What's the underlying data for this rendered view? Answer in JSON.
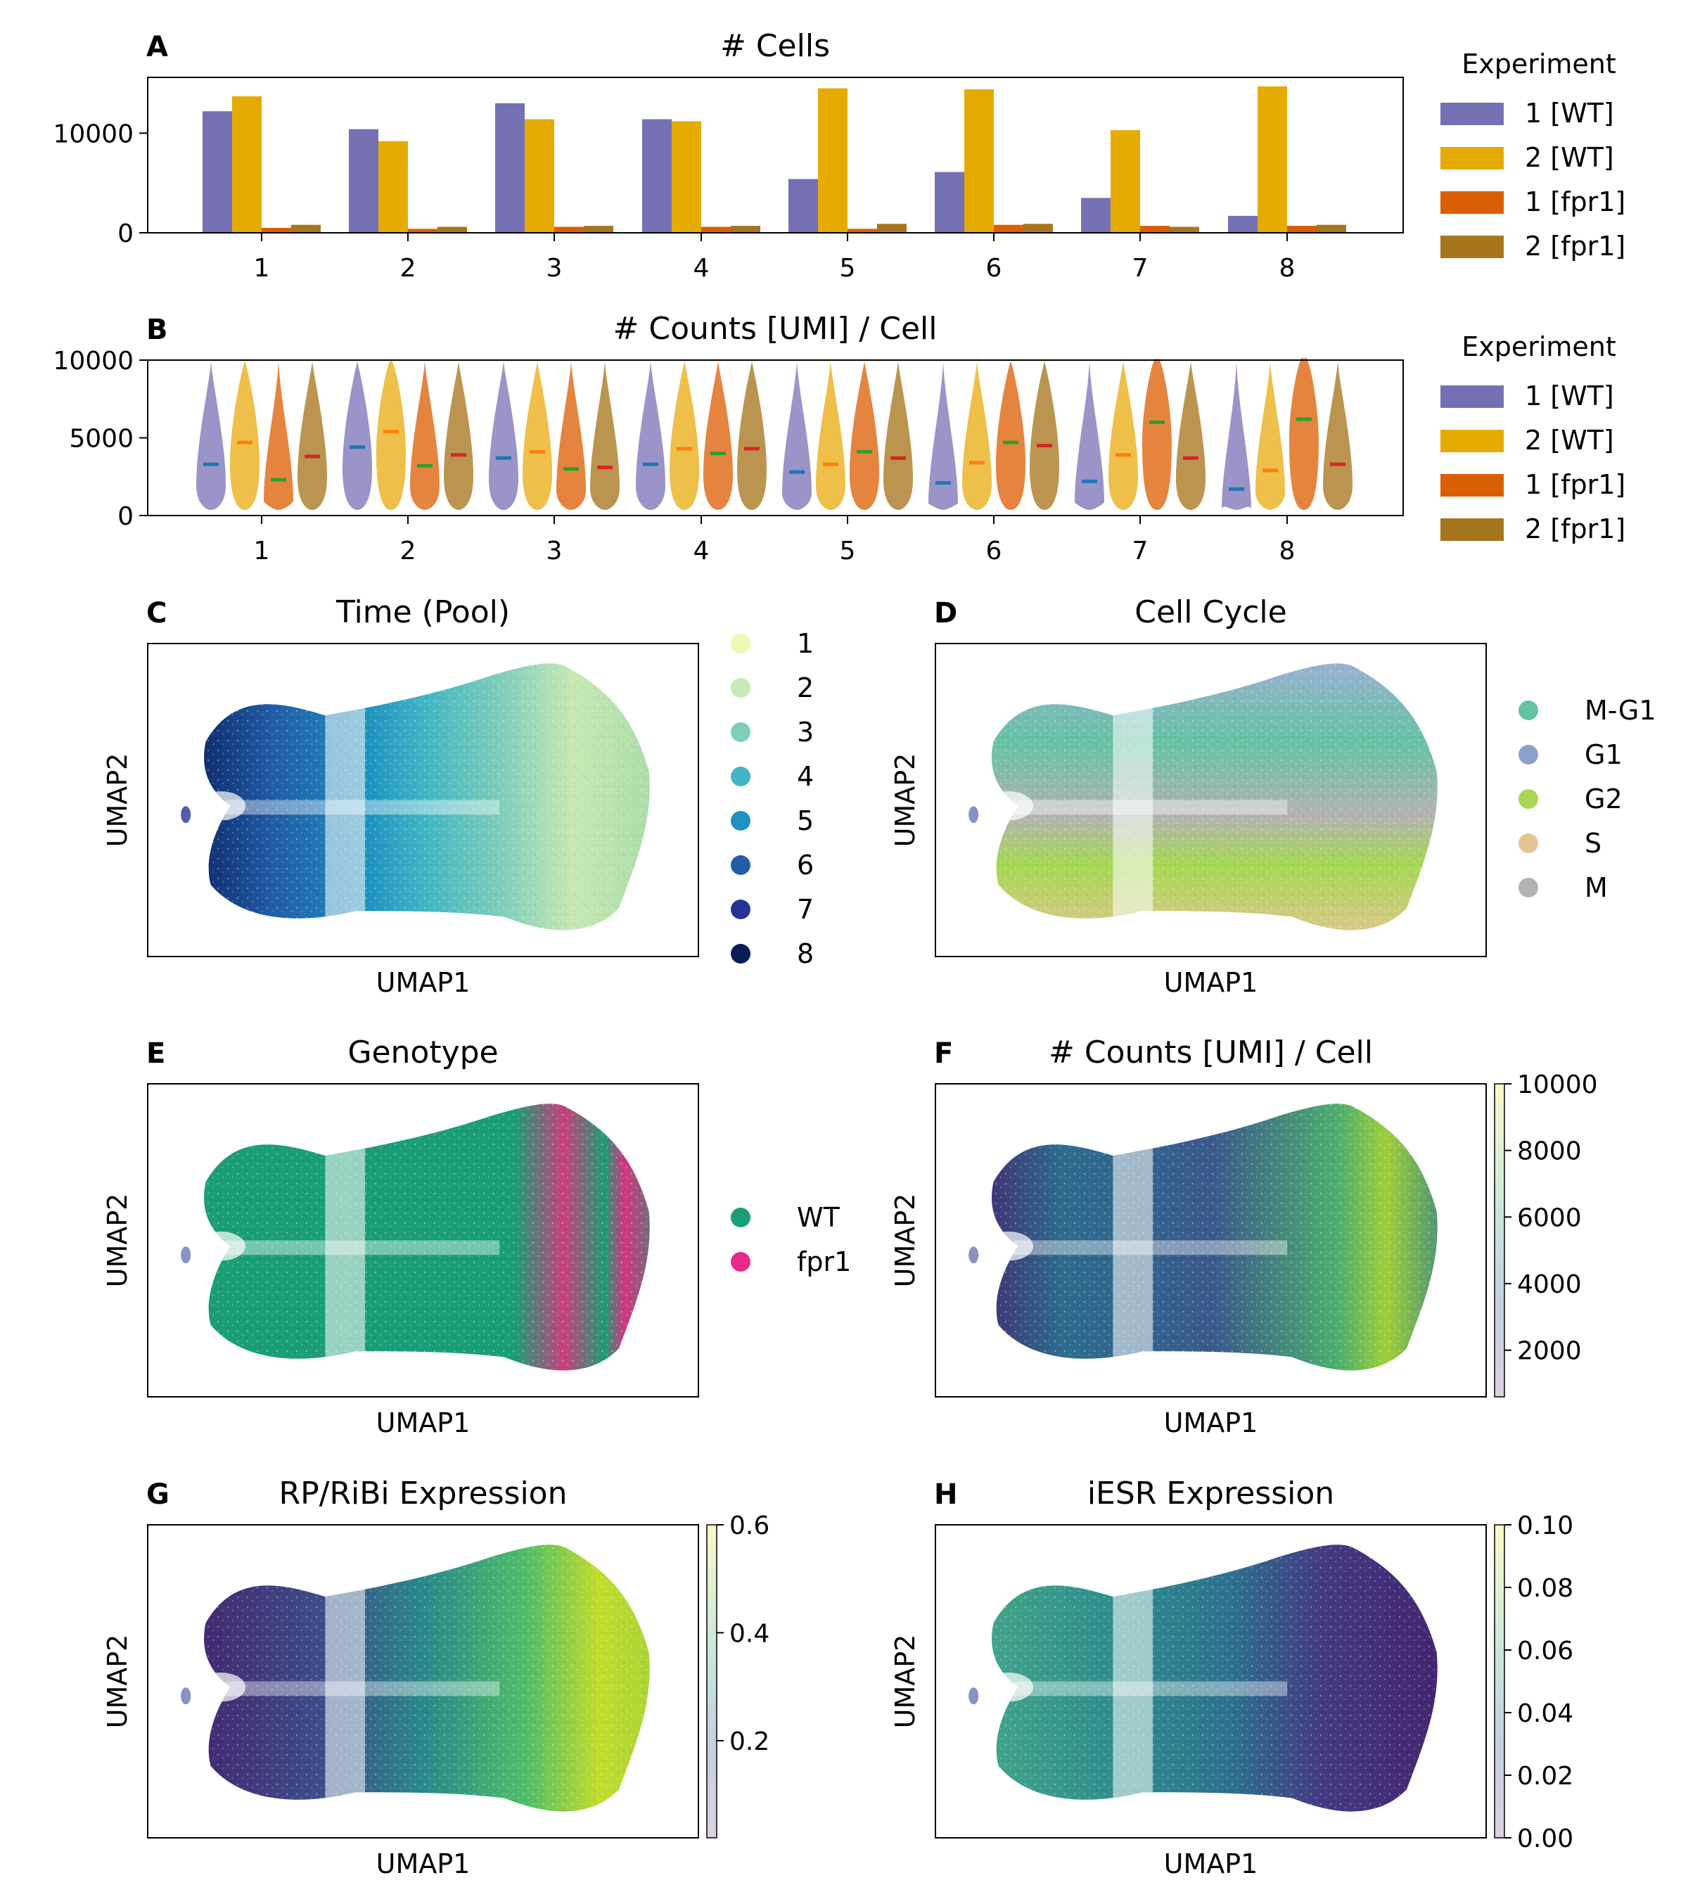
{
  "colors": {
    "exp_wt1": "#7570b3",
    "exp_wt2": "#e6ab02",
    "exp_fpr1_1": "#d95f02",
    "exp_fpr1_2": "#a6761d",
    "median_marks": [
      "#1f77b4",
      "#ff7f0e",
      "#2ca02c",
      "#d62728"
    ]
  },
  "legends": {
    "experiment": {
      "title": "Experiment",
      "entries": [
        "1 [WT]",
        "2 [WT]",
        "1 [fpr1]",
        "2 [fpr1]"
      ]
    },
    "time": {
      "entries": [
        "1",
        "2",
        "3",
        "4",
        "5",
        "6",
        "7",
        "8"
      ],
      "colors": [
        "#edf8b1",
        "#c7e9b4",
        "#7fcdbb",
        "#41b6c4",
        "#1d91c0",
        "#225ea8",
        "#253494",
        "#081d58"
      ]
    },
    "cell_cycle": {
      "entries": [
        "M-G1",
        "G1",
        "G2",
        "S",
        "M"
      ],
      "colors": [
        "#66c2a5",
        "#8da0cb",
        "#a6d854",
        "#e5c494",
        "#b3b3b3"
      ]
    },
    "genotype": {
      "entries": [
        "WT",
        "fpr1"
      ],
      "colors": [
        "#1b9e77",
        "#e7298a"
      ]
    }
  },
  "chart_data": [
    {
      "panel": "A",
      "type": "bar",
      "title": "# Cells",
      "categories": [
        "1",
        "2",
        "3",
        "4",
        "5",
        "6",
        "7",
        "8"
      ],
      "series": [
        {
          "name": "1 [WT]",
          "values": [
            12200,
            10400,
            13000,
            11400,
            5400,
            6100,
            3500,
            1700
          ]
        },
        {
          "name": "2 [WT]",
          "values": [
            13700,
            9200,
            11400,
            11200,
            14500,
            14400,
            10300,
            14700
          ]
        },
        {
          "name": "1 [fpr1]",
          "values": [
            500,
            400,
            600,
            600,
            400,
            800,
            700,
            700
          ]
        },
        {
          "name": "2 [fpr1]",
          "values": [
            800,
            600,
            700,
            700,
            900,
            900,
            600,
            800
          ]
        }
      ],
      "ylim": [
        0,
        15600
      ],
      "yticks": [
        "0",
        "10000"
      ],
      "ytick_values": [
        0,
        10000
      ],
      "legend": "right"
    },
    {
      "panel": "B",
      "type": "violin",
      "title": "# Counts [UMI] / Cell",
      "categories": [
        "1",
        "2",
        "3",
        "4",
        "5",
        "6",
        "7",
        "8"
      ],
      "series": [
        {
          "name": "1 [WT]",
          "medians": [
            3300,
            4400,
            3700,
            3300,
            2800,
            2100,
            2200,
            1700
          ]
        },
        {
          "name": "2 [WT]",
          "medians": [
            4700,
            5400,
            4100,
            4300,
            3300,
            3400,
            3900,
            2900
          ]
        },
        {
          "name": "1 [fpr1]",
          "medians": [
            2300,
            3200,
            3000,
            4000,
            4100,
            4700,
            6000,
            6200
          ]
        },
        {
          "name": "2 [fpr1]",
          "medians": [
            3800,
            3900,
            3100,
            4300,
            3700,
            4500,
            3700,
            3300
          ]
        }
      ],
      "ylim": [
        0,
        10000
      ],
      "yticks": [
        "0",
        "5000",
        "10000"
      ],
      "ytick_values": [
        0,
        5000,
        10000
      ],
      "legend": "right"
    },
    {
      "panel": "C",
      "type": "scatter",
      "title": "Time (Pool)",
      "xlabel": "UMAP1",
      "ylabel": "UMAP2",
      "legend": "right"
    },
    {
      "panel": "D",
      "type": "scatter",
      "title": "Cell Cycle",
      "xlabel": "UMAP1",
      "ylabel": "UMAP2",
      "legend": "right"
    },
    {
      "panel": "E",
      "type": "scatter",
      "title": "Genotype",
      "xlabel": "UMAP1",
      "ylabel": "UMAP2",
      "legend": "right"
    },
    {
      "panel": "F",
      "type": "scatter",
      "title": "# Counts [UMI] / Cell",
      "xlabel": "UMAP1",
      "ylabel": "UMAP2",
      "colorbar": {
        "ticks": [
          "10000",
          "8000",
          "6000",
          "4000",
          "2000"
        ],
        "tick_values": [
          10000,
          8000,
          6000,
          4000,
          2000
        ],
        "range": [
          600,
          10000
        ]
      }
    },
    {
      "panel": "G",
      "type": "scatter",
      "title": "RP/RiBi Expression",
      "xlabel": "UMAP1",
      "ylabel": "UMAP2",
      "colorbar": {
        "ticks": [
          "0.6",
          "0.4",
          "0.2"
        ],
        "tick_values": [
          0.6,
          0.4,
          0.2
        ],
        "range": [
          0.02,
          0.6
        ]
      }
    },
    {
      "panel": "H",
      "type": "scatter",
      "title": "iESR Expression",
      "xlabel": "UMAP1",
      "ylabel": "UMAP2",
      "colorbar": {
        "ticks": [
          "0.10",
          "0.08",
          "0.06",
          "0.04",
          "0.02",
          "0.00"
        ],
        "tick_values": [
          0.1,
          0.08,
          0.06,
          0.04,
          0.02,
          0.0
        ],
        "range": [
          0,
          0.1
        ]
      }
    }
  ]
}
